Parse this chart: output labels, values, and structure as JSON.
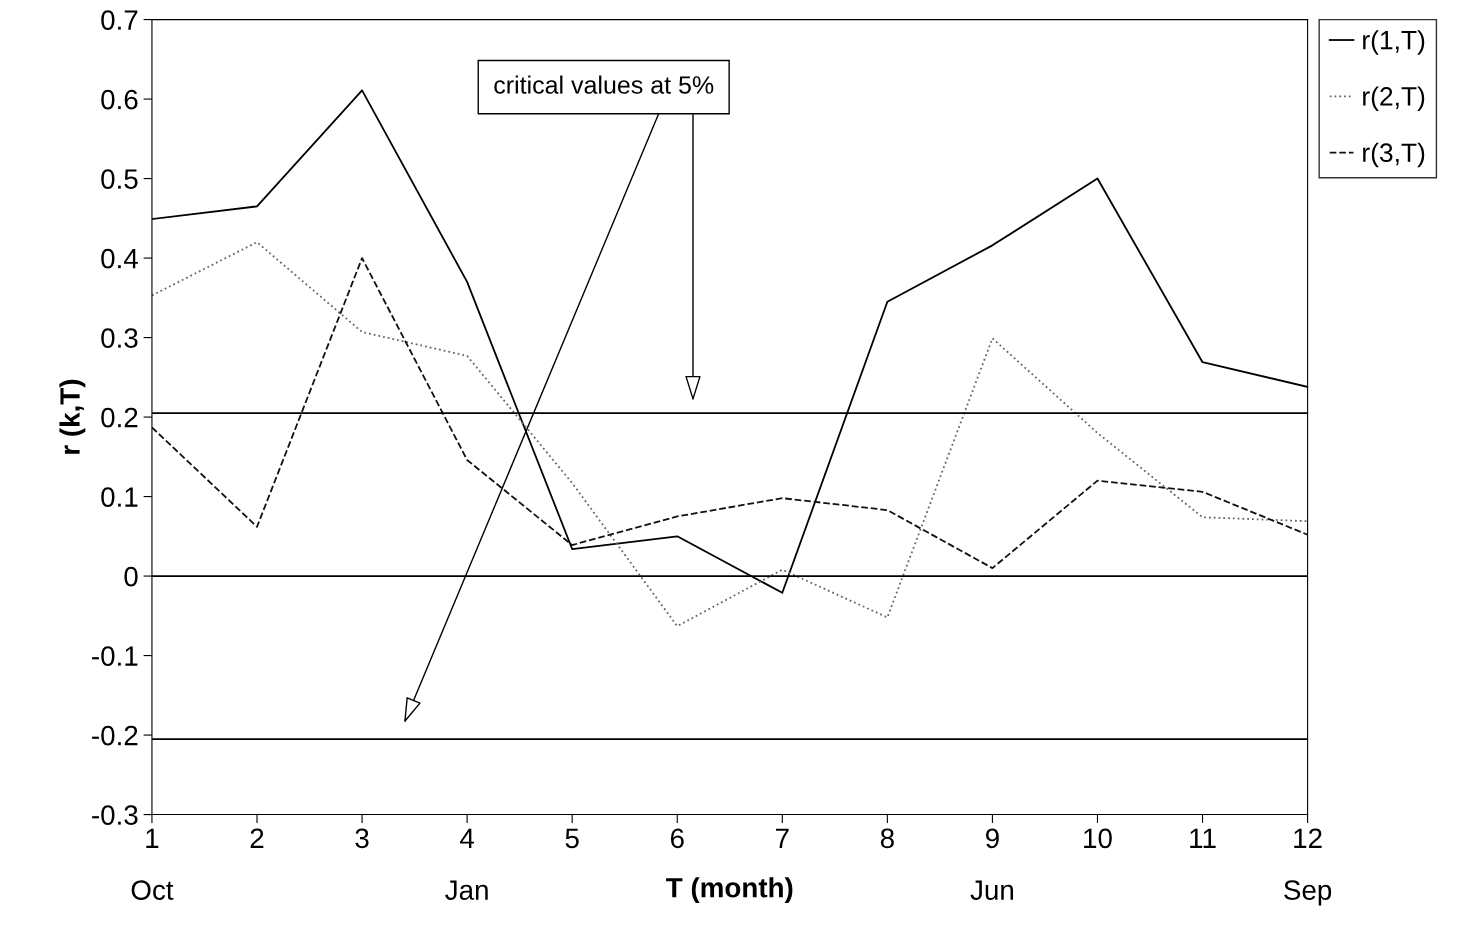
{
  "chart_data": {
    "type": "line",
    "xlabel": "T (month)",
    "ylabel": "r (k,T)",
    "x": [
      1,
      2,
      3,
      4,
      5,
      6,
      7,
      8,
      9,
      10,
      11,
      12
    ],
    "series": [
      {
        "name": "r(1,T)",
        "color": "#000000",
        "line_style": "solid",
        "values": [
          0.449,
          0.465,
          0.611,
          0.37,
          0.034,
          0.05,
          -0.021,
          0.345,
          0.416,
          0.5,
          0.269,
          0.238
        ]
      },
      {
        "name": "r(2,T)",
        "color": "#666666",
        "line_style": "dotted",
        "values": [
          0.353,
          0.42,
          0.307,
          0.277,
          0.117,
          -0.063,
          0.008,
          -0.052,
          0.299,
          0.18,
          0.074,
          0.069
        ]
      },
      {
        "name": "r(3,T)",
        "color": "#111111",
        "line_style": "dashed",
        "values": [
          0.187,
          0.062,
          0.4,
          0.146,
          0.039,
          0.075,
          0.098,
          0.083,
          0.01,
          0.12,
          0.106,
          0.052
        ]
      }
    ],
    "xlim": [
      1,
      12
    ],
    "xticks": [
      {
        "value": 1,
        "label": "1\n\nOct"
      },
      2,
      3,
      {
        "value": 4,
        "label": "4\n\nJan"
      },
      5,
      6,
      7,
      8,
      {
        "value": 9,
        "label": "9\n\nJun"
      },
      10,
      11,
      {
        "value": 12,
        "label": "12\n\nSep"
      }
    ],
    "ylim": [
      -0.3,
      0.7
    ],
    "yticks": [
      {
        "value": -0.3,
        "label": "-0.3"
      },
      {
        "value": -0.2,
        "label": "-0.2"
      },
      {
        "value": -0.1,
        "label": "-0.1"
      },
      0,
      0.1,
      0.2,
      0.3,
      0.4,
      0.5,
      0.6,
      0.7
    ],
    "ref_lines": [
      {
        "axis": "y",
        "value": 0.205,
        "color": "#000000"
      },
      {
        "axis": "y",
        "value": 0,
        "color": "#000000"
      },
      {
        "axis": "y",
        "value": -0.205,
        "color": "#000000"
      }
    ],
    "annotations": [
      "critical values at 5%"
    ],
    "marker": "none",
    "grid": false,
    "legend": "top right"
  }
}
